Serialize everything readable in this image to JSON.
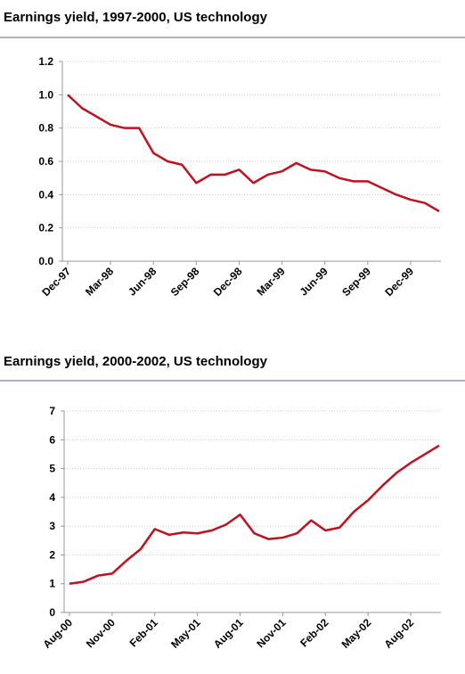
{
  "chart_data": [
    {
      "type": "line",
      "title": "Earnings yield, 1997-2000, US technology",
      "categories": [
        "Dec-97",
        null,
        null,
        "Mar-98",
        null,
        null,
        "Jun-98",
        null,
        null,
        "Sep-98",
        null,
        null,
        "Dec-98",
        null,
        null,
        "Mar-99",
        null,
        null,
        "Jun-99",
        null,
        null,
        "Sep-99",
        null,
        null,
        "Dec-99",
        null,
        null
      ],
      "series": [
        {
          "name": null,
          "color": "#c0111f",
          "values": [
            1.0,
            0.92,
            0.87,
            0.82,
            0.8,
            0.8,
            0.65,
            0.6,
            0.58,
            0.47,
            0.52,
            0.52,
            0.55,
            0.47,
            0.52,
            0.54,
            0.59,
            0.55,
            0.54,
            0.5,
            0.48,
            0.48,
            0.44,
            0.4,
            0.37,
            0.35,
            0.3
          ]
        }
      ],
      "ylim": [
        0,
        1.2
      ],
      "yticks": [
        {
          "value": 0,
          "label": "0.0"
        },
        0.2,
        0.4,
        0.6,
        0.8,
        {
          "value": 1,
          "label": "1.0"
        },
        1.2
      ],
      "grid": true
    },
    {
      "type": "line",
      "title": "Earnings yield, 2000-2002, US technology",
      "categories": [
        "Aug-00",
        null,
        null,
        "Nov-00",
        null,
        null,
        "Feb-01",
        null,
        null,
        "May-01",
        null,
        null,
        "Aug-01",
        null,
        null,
        "Nov-01",
        null,
        null,
        "Feb-02",
        null,
        null,
        "May-02",
        null,
        null,
        "Aug-02",
        null,
        null
      ],
      "series": [
        {
          "name": null,
          "color": "#c0111f",
          "values": [
            1.0,
            1.07,
            1.28,
            1.35,
            1.8,
            2.2,
            2.9,
            2.7,
            2.78,
            2.75,
            2.85,
            3.05,
            3.4,
            2.75,
            2.55,
            2.6,
            2.75,
            3.2,
            2.85,
            2.95,
            3.5,
            3.9,
            4.4,
            4.85,
            5.2,
            5.5,
            5.8
          ]
        }
      ],
      "ylim": [
        0,
        7
      ],
      "yticks": [
        0,
        1,
        2,
        3,
        4,
        5,
        6,
        7
      ],
      "grid": true
    }
  ]
}
